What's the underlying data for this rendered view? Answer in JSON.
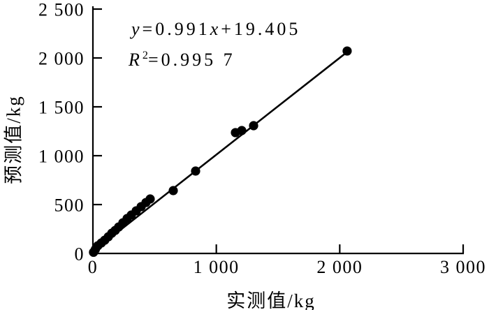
{
  "figure": {
    "background_color": "#ffffff",
    "ink_color": "#000000"
  },
  "chart_data": {
    "type": "scatter",
    "title": "",
    "xlabel": "实测值/kg",
    "ylabel": "预测值/kg",
    "xlim": [
      0,
      3000
    ],
    "ylim": [
      0,
      2500
    ],
    "grid": false,
    "legend": null,
    "x_ticks": [
      {
        "value": 0,
        "label": "0"
      },
      {
        "value": 1000,
        "label": "1 000"
      },
      {
        "value": 2000,
        "label": "2 000"
      },
      {
        "value": 3000,
        "label": "3 000"
      }
    ],
    "y_ticks": [
      {
        "value": 0,
        "label": "0"
      },
      {
        "value": 500,
        "label": "500"
      },
      {
        "value": 1000,
        "label": "1 000"
      },
      {
        "value": 1500,
        "label": "1 500"
      },
      {
        "value": 2000,
        "label": "2 000"
      },
      {
        "value": 2500,
        "label": "2 500"
      }
    ],
    "points": [
      [
        5,
        12
      ],
      [
        20,
        42
      ],
      [
        40,
        79
      ],
      [
        68,
        107
      ],
      [
        96,
        136
      ],
      [
        125,
        171
      ],
      [
        153,
        207
      ],
      [
        181,
        236
      ],
      [
        209,
        271
      ],
      [
        243,
        314
      ],
      [
        277,
        357
      ],
      [
        311,
        393
      ],
      [
        351,
        436
      ],
      [
        391,
        479
      ],
      [
        430,
        521
      ],
      [
        464,
        557
      ],
      [
        651,
        643
      ],
      [
        832,
        843
      ],
      [
        1155,
        1236
      ],
      [
        1206,
        1257
      ],
      [
        1302,
        1307
      ],
      [
        2060,
        2071
      ]
    ],
    "fit_line": {
      "slope": 0.991,
      "intercept": 19.405,
      "x_start": 0,
      "x_end": 2062
    },
    "annotations": [
      {
        "id": "equation",
        "segments": [
          {
            "text": "y",
            "italic": true
          },
          {
            "text": "=0.991"
          },
          {
            "text": "x",
            "italic": true
          },
          {
            "text": "+19.405"
          }
        ]
      },
      {
        "id": "r_squared",
        "segments": [
          {
            "text": "R",
            "italic": true
          },
          {
            "text": "2",
            "sup": true
          },
          {
            "text": "=0.995 7"
          }
        ]
      }
    ]
  }
}
